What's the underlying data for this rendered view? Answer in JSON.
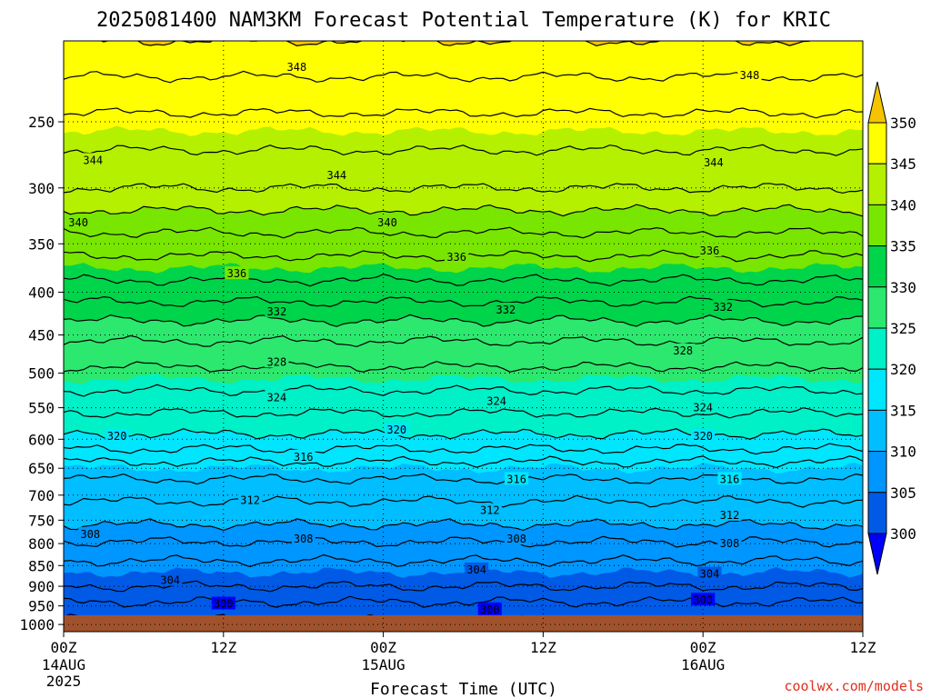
{
  "chart_data": {
    "type": "heatmap",
    "title": "2025081400 NAM3KM Forecast Potential Temperature (K) for KRIC",
    "xlabel": "Forecast Time (UTC)",
    "ylabel": "",
    "credit": "coolwx.com/models",
    "x_range_hours": [
      0,
      60
    ],
    "x_ticks": [
      {
        "hour": 0,
        "label": "00Z",
        "sub1": "14AUG",
        "sub2": "2025"
      },
      {
        "hour": 12,
        "label": "12Z",
        "sub1": "",
        "sub2": ""
      },
      {
        "hour": 24,
        "label": "00Z",
        "sub1": "15AUG",
        "sub2": ""
      },
      {
        "hour": 36,
        "label": "12Z",
        "sub1": "",
        "sub2": ""
      },
      {
        "hour": 48,
        "label": "00Z",
        "sub1": "16AUG",
        "sub2": ""
      },
      {
        "hour": 60,
        "label": "12Z",
        "sub1": "",
        "sub2": ""
      }
    ],
    "y_axis": "pressure (hPa), log scale, top 200 to bottom 1020",
    "y_ticks": [
      {
        "p": 250,
        "label": "250"
      },
      {
        "p": 300,
        "label": "300"
      },
      {
        "p": 350,
        "label": "350"
      },
      {
        "p": 400,
        "label": "400"
      },
      {
        "p": 450,
        "label": "450"
      },
      {
        "p": 500,
        "label": "500"
      },
      {
        "p": 550,
        "label": "550"
      },
      {
        "p": 600,
        "label": "600"
      },
      {
        "p": 650,
        "label": "650"
      },
      {
        "p": 700,
        "label": "700"
      },
      {
        "p": 750,
        "label": "750"
      },
      {
        "p": 800,
        "label": "800"
      },
      {
        "p": 850,
        "label": "850"
      },
      {
        "p": 900,
        "label": "900"
      },
      {
        "p": 950,
        "label": "950"
      },
      {
        "p": 1000,
        "label": "1000"
      }
    ],
    "grid": "dotted",
    "colorbar": {
      "placement": "right",
      "levels": [
        "350",
        "345",
        "340",
        "335",
        "330",
        "325",
        "320",
        "315",
        "310",
        "305",
        "300"
      ],
      "colors": [
        "#f5c400",
        "#ffff00",
        "#b4f000",
        "#78e600",
        "#00d44a",
        "#2ce86e",
        "#00f0c8",
        "#00e6ff",
        "#00beff",
        "#0096ff",
        "#005ae6",
        "#0000ff"
      ]
    },
    "contour_interval_K": 2,
    "contour_profile": [
      {
        "p": 1000,
        "theta": 299.5
      },
      {
        "p": 950,
        "theta": 301.5
      },
      {
        "p": 900,
        "theta": 304
      },
      {
        "p": 850,
        "theta": 305.5
      },
      {
        "p": 800,
        "theta": 307.8
      },
      {
        "p": 750,
        "theta": 310.5
      },
      {
        "p": 700,
        "theta": 312.5
      },
      {
        "p": 650,
        "theta": 315
      },
      {
        "p": 600,
        "theta": 319.5
      },
      {
        "p": 550,
        "theta": 322.5
      },
      {
        "p": 500,
        "theta": 325.5
      },
      {
        "p": 450,
        "theta": 328.5
      },
      {
        "p": 400,
        "theta": 333
      },
      {
        "p": 350,
        "theta": 337
      },
      {
        "p": 300,
        "theta": 342
      },
      {
        "p": 250,
        "theta": 345.5
      },
      {
        "p": 200,
        "theta": 350
      }
    ],
    "contour_labels": [
      {
        "value": "348",
        "hour": 17.5,
        "p": 215
      },
      {
        "value": "348",
        "hour": 51.5,
        "p": 220
      },
      {
        "value": "344",
        "hour": 2.2,
        "p": 278
      },
      {
        "value": "344",
        "hour": 20.5,
        "p": 290
      },
      {
        "value": "344",
        "hour": 48.8,
        "p": 280
      },
      {
        "value": "340",
        "hour": 1.1,
        "p": 330
      },
      {
        "value": "340",
        "hour": 24.3,
        "p": 330
      },
      {
        "value": "336",
        "hour": 13.0,
        "p": 380
      },
      {
        "value": "336",
        "hour": 29.5,
        "p": 363
      },
      {
        "value": "336",
        "hour": 48.5,
        "p": 357
      },
      {
        "value": "332",
        "hour": 16.0,
        "p": 422
      },
      {
        "value": "332",
        "hour": 33.2,
        "p": 420
      },
      {
        "value": "332",
        "hour": 49.5,
        "p": 417
      },
      {
        "value": "328",
        "hour": 16.0,
        "p": 485
      },
      {
        "value": "328",
        "hour": 46.5,
        "p": 470
      },
      {
        "value": "324",
        "hour": 16.0,
        "p": 535
      },
      {
        "value": "324",
        "hour": 32.5,
        "p": 540
      },
      {
        "value": "324",
        "hour": 48.0,
        "p": 550
      },
      {
        "value": "320",
        "hour": 4.0,
        "p": 595
      },
      {
        "value": "320",
        "hour": 25.0,
        "p": 585
      },
      {
        "value": "320",
        "hour": 48.0,
        "p": 595
      },
      {
        "value": "316",
        "hour": 18.0,
        "p": 630
      },
      {
        "value": "316",
        "hour": 34.0,
        "p": 670
      },
      {
        "value": "316",
        "hour": 50.0,
        "p": 670
      },
      {
        "value": "312",
        "hour": 14.0,
        "p": 710
      },
      {
        "value": "312",
        "hour": 32.0,
        "p": 730
      },
      {
        "value": "312",
        "hour": 50.0,
        "p": 740
      },
      {
        "value": "308",
        "hour": 2.0,
        "p": 780
      },
      {
        "value": "308",
        "hour": 18.0,
        "p": 790
      },
      {
        "value": "308",
        "hour": 34.0,
        "p": 790
      },
      {
        "value": "308",
        "hour": 50.0,
        "p": 800
      },
      {
        "value": "304",
        "hour": 8.0,
        "p": 885
      },
      {
        "value": "304",
        "hour": 31.0,
        "p": 860
      },
      {
        "value": "304",
        "hour": 48.5,
        "p": 870
      },
      {
        "value": "300",
        "hour": 12.0,
        "p": 945
      },
      {
        "value": "300",
        "hour": 32.0,
        "p": 960
      },
      {
        "value": "300",
        "hour": 48.0,
        "p": 935
      }
    ]
  }
}
